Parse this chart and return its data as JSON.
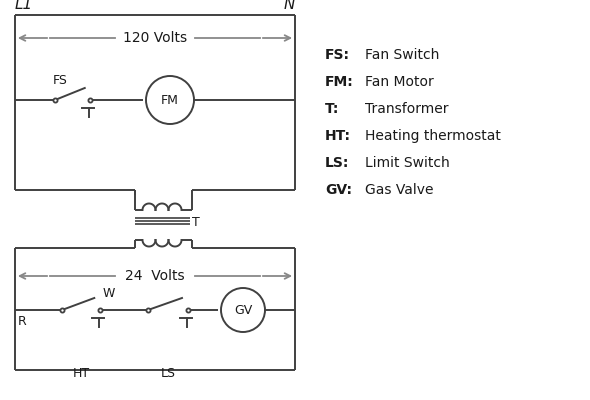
{
  "bg_color": "#ffffff",
  "line_color": "#404040",
  "gray_color": "#888888",
  "text_color": "#1a1a1a",
  "legend": [
    [
      "FS:",
      "Fan Switch"
    ],
    [
      "FM:",
      "Fan Motor"
    ],
    [
      "T:",
      "Transformer"
    ],
    [
      "HT:",
      "Heating thermostat"
    ],
    [
      "LS:",
      "Limit Switch"
    ],
    [
      "GV:",
      "Gas Valve"
    ]
  ],
  "L1_label": "L1",
  "N_label": "N",
  "volts120": "120 Volts",
  "volts24": "24  Volts",
  "T_label": "T",
  "FS_label": "FS",
  "FM_label": "FM",
  "R_label": "R",
  "W_label": "W",
  "HT_label": "HT",
  "LS_label": "LS",
  "GV_label": "GV"
}
